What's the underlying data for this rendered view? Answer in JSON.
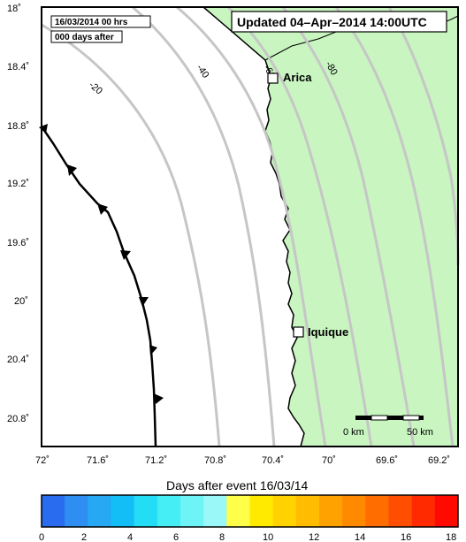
{
  "header": {
    "date_label": "16/03/2014  00 hrs",
    "days_label": "000 days after",
    "updated_label": "Updated 04–Apr–2014 14:00UTC"
  },
  "map": {
    "lat_ticks": [
      "18.4˚",
      "18.8˚",
      "19.2˚",
      "19.6˚",
      "20˚",
      "20.4˚",
      "20.8˚"
    ],
    "lat_top_label": "18˚",
    "lon_ticks": [
      "72˚",
      "71.6˚",
      "71.2˚",
      "70.8˚",
      "70.4˚",
      "70˚",
      "69.6˚",
      "69.2˚"
    ],
    "land_color": "#c8f5c0",
    "sea_color": "#ffffff",
    "contour_color": "#c6c6c6",
    "contour_labels": [
      "-20",
      "-40",
      "-60",
      "-80"
    ],
    "cities": [
      {
        "name": "Arica"
      },
      {
        "name": "Iquique"
      }
    ],
    "scale_bar": {
      "start_label": "0 km",
      "end_label": "50 km"
    }
  },
  "colorbar": {
    "title": "Days after event 16/03/14",
    "tick_labels": [
      "0",
      "2",
      "4",
      "6",
      "8",
      "10",
      "12",
      "14",
      "16",
      "18"
    ],
    "colors": [
      "#2a6cf0",
      "#2f8ef2",
      "#27a8f2",
      "#12bef5",
      "#23dcf5",
      "#45eef5",
      "#6ef3f7",
      "#9af8f8",
      "#ffff4a",
      "#ffea00",
      "#ffd200",
      "#ffbc00",
      "#ffa200",
      "#ff8a00",
      "#ff6c00",
      "#ff4e00",
      "#ff2a00",
      "#ff0a00"
    ]
  }
}
